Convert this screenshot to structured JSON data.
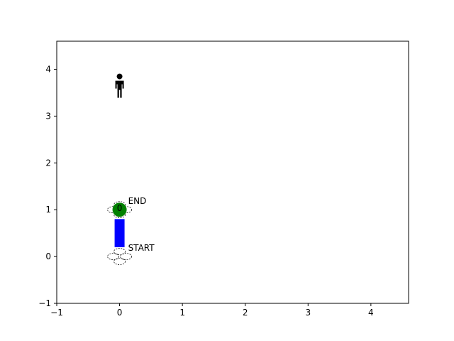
{
  "plot": {
    "xlim": [
      -1,
      4.6
    ],
    "ylim": [
      -1,
      4.6
    ],
    "x_ticks": [
      -1,
      0,
      1,
      2,
      3,
      4
    ],
    "y_ticks": [
      -1,
      0,
      1,
      2,
      3,
      4
    ],
    "x_tick_labels": [
      "−1",
      "0",
      "1",
      "2",
      "3",
      "4"
    ],
    "y_tick_labels": [
      "−1",
      "0",
      "1",
      "2",
      "3",
      "4"
    ],
    "grid": false
  },
  "scene": {
    "start": {
      "x": 0,
      "y": 0,
      "label": "START"
    },
    "end": {
      "x": 0,
      "y": 1,
      "label": "END"
    },
    "agent": {
      "x": 0,
      "y": 1,
      "label": "0",
      "color": "#008000"
    },
    "path_bar": {
      "x": 0,
      "y_from": 0.2,
      "y_to": 0.8,
      "color": "#0000ff"
    },
    "person": {
      "x": 0,
      "y": 3.65,
      "icon": "person-icon"
    }
  },
  "colors": {
    "agent": "#008000",
    "path": "#0000ff",
    "axes": "#000000"
  }
}
